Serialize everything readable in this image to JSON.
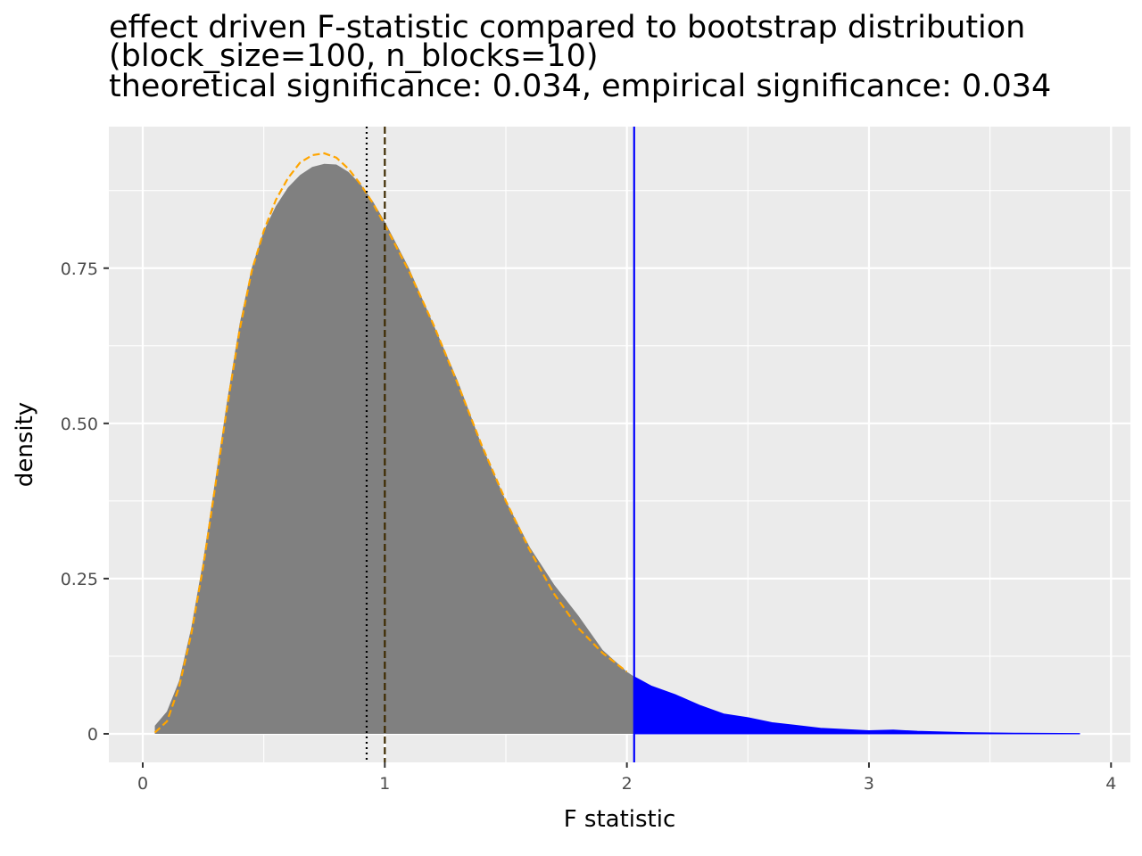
{
  "chart_data": {
    "type": "area",
    "title_lines": [
      "effect driven F-statistic compared to bootstrap distribution",
      "(block_size=100, n_blocks=10)",
      "theoretical significance: 0.034, empirical significance: 0.034"
    ],
    "xlabel": "F statistic",
    "ylabel": "density",
    "xlim": [
      -0.14,
      4.08
    ],
    "ylim": [
      -0.046,
      0.978
    ],
    "x_ticks": [
      {
        "value": 0,
        "label": "0"
      },
      {
        "value": 1,
        "label": "1"
      },
      {
        "value": 2,
        "label": "2"
      },
      {
        "value": 3,
        "label": "3"
      },
      {
        "value": 4,
        "label": "4"
      }
    ],
    "y_ticks": [
      {
        "value": 0,
        "label": "0"
      },
      {
        "value": 0.25,
        "label": "0.25"
      },
      {
        "value": 0.5,
        "label": "0.50"
      },
      {
        "value": 0.75,
        "label": "0.75"
      }
    ],
    "grid": true,
    "panel_color": "#ebebeb",
    "grid_color": "#ffffff",
    "observed_statistic": 2.03,
    "vertical_lines": [
      {
        "x": 0.925,
        "style": "dotted",
        "color": "#000000"
      },
      {
        "x": 1.0,
        "style": "dashed",
        "color": "#3d2a00"
      },
      {
        "x": 2.03,
        "style": "solid",
        "color": "#0000ff"
      }
    ],
    "bootstrap_density": {
      "fill": "#808080",
      "tail_fill": "#0000ff",
      "x": [
        0.05,
        0.1,
        0.15,
        0.2,
        0.25,
        0.3,
        0.35,
        0.4,
        0.45,
        0.5,
        0.55,
        0.6,
        0.65,
        0.7,
        0.75,
        0.8,
        0.85,
        0.9,
        0.95,
        1.0,
        1.1,
        1.2,
        1.3,
        1.4,
        1.5,
        1.6,
        1.7,
        1.8,
        1.9,
        2.0,
        2.03,
        2.1,
        2.2,
        2.3,
        2.4,
        2.5,
        2.6,
        2.8,
        3.0,
        3.1,
        3.2,
        3.4,
        3.6,
        3.87
      ],
      "y": [
        0.013,
        0.036,
        0.085,
        0.17,
        0.28,
        0.41,
        0.54,
        0.66,
        0.75,
        0.81,
        0.85,
        0.88,
        0.9,
        0.913,
        0.918,
        0.917,
        0.905,
        0.885,
        0.858,
        0.825,
        0.75,
        0.66,
        0.57,
        0.465,
        0.375,
        0.3,
        0.24,
        0.19,
        0.135,
        0.1,
        0.092,
        0.077,
        0.063,
        0.046,
        0.032,
        0.026,
        0.018,
        0.009,
        0.005,
        0.006,
        0.004,
        0.002,
        0.001,
        0.0005
      ]
    },
    "theoretical_density": {
      "color": "#ffa500",
      "style": "dashed",
      "x": [
        0.05,
        0.1,
        0.15,
        0.2,
        0.25,
        0.3,
        0.35,
        0.4,
        0.45,
        0.5,
        0.55,
        0.6,
        0.65,
        0.7,
        0.75,
        0.8,
        0.85,
        0.9,
        0.95,
        1.0,
        1.1,
        1.2,
        1.3,
        1.4,
        1.5,
        1.6,
        1.7,
        1.8,
        1.9,
        2.0
      ],
      "y": [
        0.002,
        0.02,
        0.075,
        0.16,
        0.27,
        0.4,
        0.53,
        0.65,
        0.745,
        0.81,
        0.86,
        0.895,
        0.92,
        0.932,
        0.935,
        0.928,
        0.91,
        0.885,
        0.855,
        0.82,
        0.745,
        0.66,
        0.565,
        0.465,
        0.375,
        0.295,
        0.225,
        0.17,
        0.13,
        0.1
      ]
    }
  }
}
